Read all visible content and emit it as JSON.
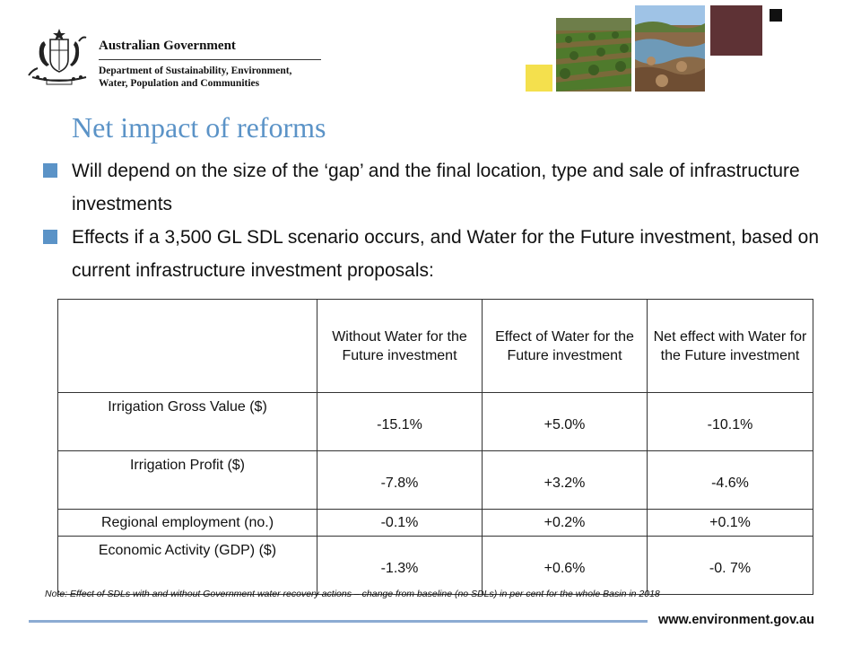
{
  "header": {
    "org_title": "Australian Government",
    "department_line1": "Department of Sustainability, Environment,",
    "department_line2": "Water, Population and Communities"
  },
  "slide": {
    "title": "Net impact of reforms",
    "bullets": [
      "Will depend on the size of the ‘gap’ and the final location, type and sale of infrastructure investments",
      "Effects if a 3,500 GL SDL scenario occurs, and Water for the Future investment, based on current infrastructure investment proposals:"
    ]
  },
  "table": {
    "headers": [
      "",
      "Without Water for the Future investment",
      "Effect of Water for the Future investment",
      "Net effect with Water for the Future investment"
    ],
    "rows": [
      [
        "Irrigation Gross Value ($)",
        "-15.1%",
        "+5.0%",
        "-10.1%"
      ],
      [
        "Irrigation Profit ($)",
        "-7.8%",
        "+3.2%",
        "-4.6%"
      ],
      [
        "Regional employment (no.)",
        "-0.1%",
        "+0.2%",
        "+0.1%"
      ],
      [
        "Economic Activity (GDP) ($)",
        "-1.3%",
        "+0.6%",
        "-0. 7%"
      ]
    ]
  },
  "note": "Note: Effect of SDLs with and without Government water recovery actions – change from baseline (no SDLs) in per cent for the whole Basin in 2018",
  "footer": {
    "url": "www.environment.gov.au"
  },
  "colors": {
    "accent": "#5b93c7",
    "footer_rule": "#8cabd3",
    "tile_yellow": "#f4e04d",
    "tile_maroon": "#5e3235"
  },
  "icons": {
    "crest": "coat-of-arms-icon",
    "bullet": "square-bullet-icon"
  }
}
